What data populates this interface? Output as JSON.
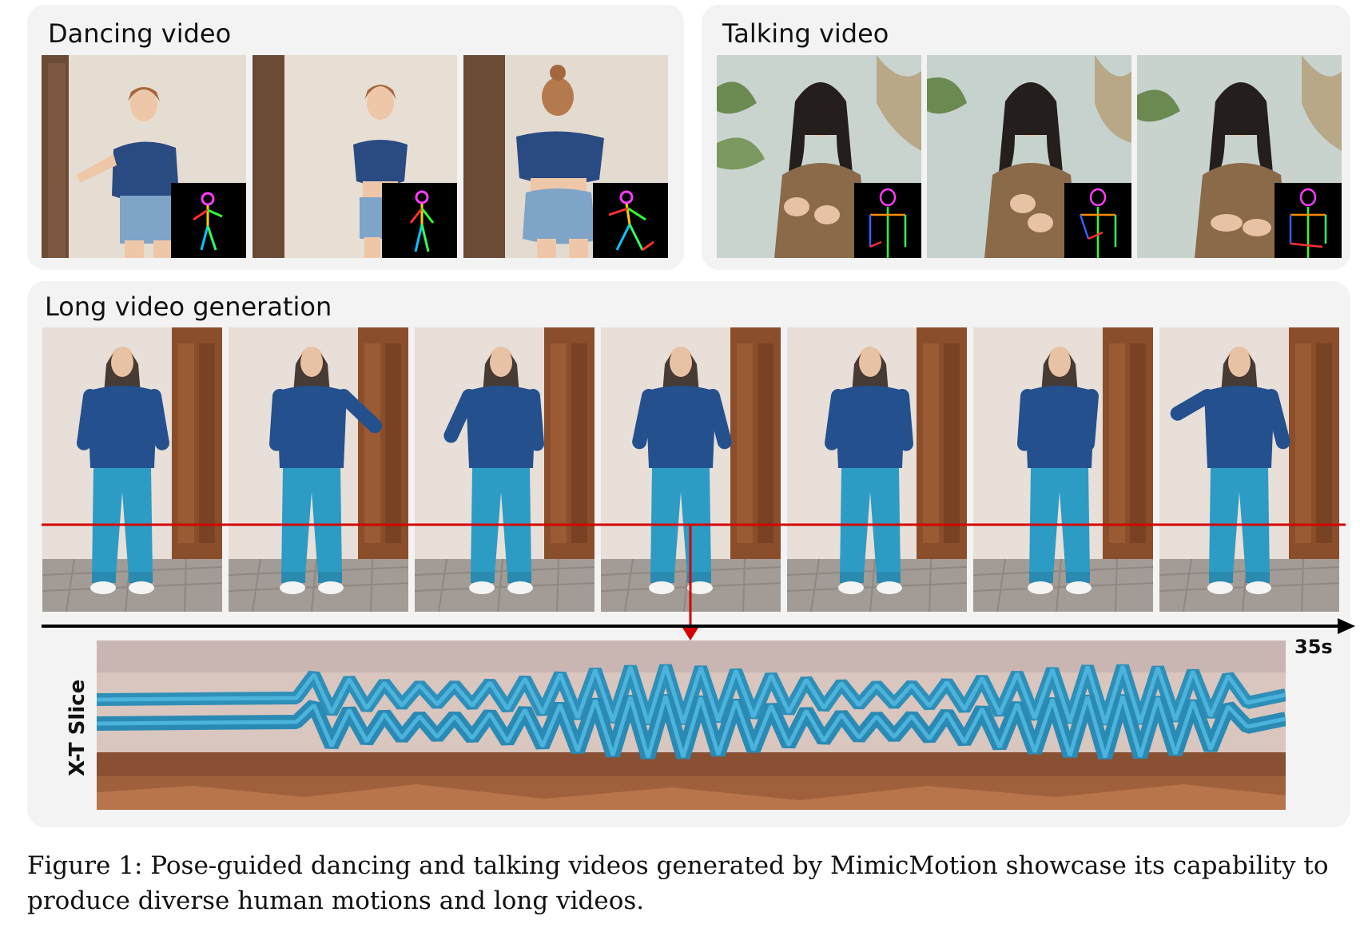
{
  "panels": {
    "dancing": {
      "title": "Dancing video"
    },
    "talking": {
      "title": "Talking video"
    },
    "long": {
      "title": "Long video generation"
    }
  },
  "timeline": {
    "end_label": "35s",
    "slice_label": "X-T Slice"
  },
  "caption": "Figure 1: Pose-guided dancing and talking videos generated by MimicMotion showcase its capability to produce diverse human motions and long videos.",
  "colors": {
    "red_line": "#d40000",
    "top_blue": "#2a4a82",
    "pants_teal": "#2c9cc4",
    "door_brown": "#8a4e2a"
  }
}
